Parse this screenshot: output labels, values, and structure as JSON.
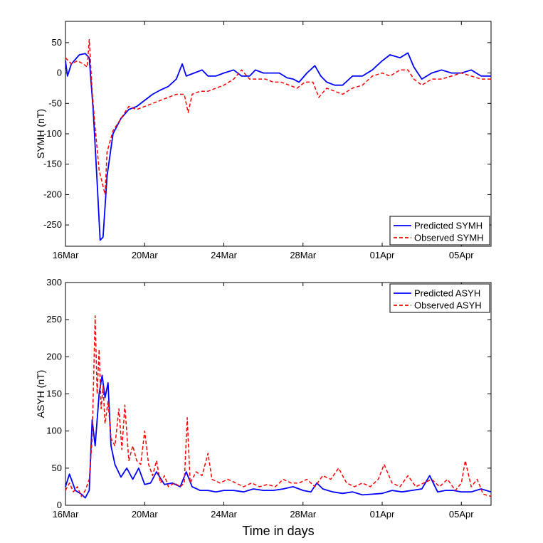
{
  "figure": {
    "xlabel": "Time in days"
  },
  "chart_data": [
    {
      "type": "line",
      "ylabel": "SYMH (nT)",
      "xlim": [
        0,
        21.5
      ],
      "ylim": [
        -285,
        85
      ],
      "yticks": [
        -250,
        -200,
        -150,
        -100,
        -50,
        0,
        50
      ],
      "xtick_positions": [
        0,
        4,
        8,
        12,
        16,
        20
      ],
      "xtick_labels": [
        "16Mar",
        "20Mar",
        "24Mar",
        "28Mar",
        "01Apr",
        "05Apr"
      ],
      "legend_position": "bottom-right",
      "series": [
        {
          "name": "Predicted SYMH",
          "color": "#0000ff",
          "style": "solid",
          "points": [
            [
              0,
              20
            ],
            [
              0.1,
              -5
            ],
            [
              0.3,
              15
            ],
            [
              0.7,
              30
            ],
            [
              1.0,
              32
            ],
            [
              1.2,
              25
            ],
            [
              1.4,
              -60
            ],
            [
              1.6,
              -180
            ],
            [
              1.75,
              -275
            ],
            [
              1.9,
              -270
            ],
            [
              2.1,
              -170
            ],
            [
              2.4,
              -100
            ],
            [
              2.8,
              -75
            ],
            [
              3.2,
              -60
            ],
            [
              3.6,
              -55
            ],
            [
              4.0,
              -45
            ],
            [
              4.4,
              -35
            ],
            [
              4.8,
              -28
            ],
            [
              5.2,
              -22
            ],
            [
              5.6,
              -10
            ],
            [
              5.9,
              15
            ],
            [
              6.1,
              -5
            ],
            [
              6.5,
              0
            ],
            [
              6.9,
              5
            ],
            [
              7.2,
              -5
            ],
            [
              7.6,
              -5
            ],
            [
              8.0,
              0
            ],
            [
              8.5,
              5
            ],
            [
              8.9,
              -5
            ],
            [
              9.3,
              -5
            ],
            [
              9.6,
              5
            ],
            [
              10.0,
              0
            ],
            [
              10.4,
              0
            ],
            [
              10.8,
              0
            ],
            [
              11.2,
              -8
            ],
            [
              11.5,
              -10
            ],
            [
              11.8,
              -15
            ],
            [
              12.2,
              0
            ],
            [
              12.6,
              12
            ],
            [
              12.9,
              -5
            ],
            [
              13.2,
              -15
            ],
            [
              13.6,
              -20
            ],
            [
              14.0,
              -20
            ],
            [
              14.5,
              -5
            ],
            [
              15.0,
              -5
            ],
            [
              15.5,
              5
            ],
            [
              16.0,
              20
            ],
            [
              16.4,
              30
            ],
            [
              16.9,
              25
            ],
            [
              17.3,
              33
            ],
            [
              17.6,
              10
            ],
            [
              18.0,
              -10
            ],
            [
              18.5,
              0
            ],
            [
              19.0,
              5
            ],
            [
              19.5,
              0
            ],
            [
              20.0,
              0
            ],
            [
              20.5,
              5
            ],
            [
              21.0,
              -5
            ],
            [
              21.5,
              -5
            ]
          ]
        },
        {
          "name": "Observed SYMH",
          "color": "#ff0000",
          "style": "dashed",
          "points": [
            [
              0,
              25
            ],
            [
              0.3,
              15
            ],
            [
              0.6,
              20
            ],
            [
              0.9,
              15
            ],
            [
              1.1,
              10
            ],
            [
              1.2,
              55
            ],
            [
              1.35,
              -30
            ],
            [
              1.5,
              -90
            ],
            [
              1.7,
              -160
            ],
            [
              1.85,
              -180
            ],
            [
              2.0,
              -200
            ],
            [
              2.1,
              -130
            ],
            [
              2.4,
              -95
            ],
            [
              2.8,
              -75
            ],
            [
              3.2,
              -55
            ],
            [
              3.6,
              -60
            ],
            [
              4.0,
              -55
            ],
            [
              4.4,
              -50
            ],
            [
              4.8,
              -45
            ],
            [
              5.2,
              -40
            ],
            [
              5.6,
              -35
            ],
            [
              6.0,
              -35
            ],
            [
              6.2,
              -65
            ],
            [
              6.4,
              -35
            ],
            [
              6.8,
              -30
            ],
            [
              7.2,
              -30
            ],
            [
              7.6,
              -25
            ],
            [
              8.0,
              -20
            ],
            [
              8.5,
              -10
            ],
            [
              8.9,
              5
            ],
            [
              9.3,
              -10
            ],
            [
              9.7,
              -10
            ],
            [
              10.1,
              -10
            ],
            [
              10.5,
              -15
            ],
            [
              10.9,
              -15
            ],
            [
              11.3,
              -20
            ],
            [
              11.7,
              -25
            ],
            [
              12.1,
              -15
            ],
            [
              12.5,
              -15
            ],
            [
              12.8,
              -40
            ],
            [
              13.2,
              -25
            ],
            [
              13.6,
              -30
            ],
            [
              14.0,
              -35
            ],
            [
              14.5,
              -25
            ],
            [
              15.0,
              -20
            ],
            [
              15.5,
              -5
            ],
            [
              16.0,
              0
            ],
            [
              16.4,
              -5
            ],
            [
              16.9,
              5
            ],
            [
              17.3,
              5
            ],
            [
              17.6,
              -10
            ],
            [
              18.0,
              -20
            ],
            [
              18.5,
              -10
            ],
            [
              19.0,
              -10
            ],
            [
              19.5,
              -5
            ],
            [
              20.0,
              0
            ],
            [
              20.5,
              -5
            ],
            [
              21.0,
              -10
            ],
            [
              21.5,
              -10
            ]
          ]
        }
      ]
    },
    {
      "type": "line",
      "ylabel": "ASYH (nT)",
      "xlim": [
        0,
        21.5
      ],
      "ylim": [
        0,
        300
      ],
      "yticks": [
        0,
        50,
        100,
        150,
        200,
        250,
        300
      ],
      "xtick_positions": [
        0,
        4,
        8,
        12,
        16,
        20
      ],
      "xtick_labels": [
        "16Mar",
        "20Mar",
        "24Mar",
        "28Mar",
        "01Apr",
        "05Apr"
      ],
      "legend_position": "top-right",
      "series": [
        {
          "name": "Predicted ASYH",
          "color": "#0000ff",
          "style": "solid",
          "points": [
            [
              0,
              25
            ],
            [
              0.2,
              42
            ],
            [
              0.5,
              20
            ],
            [
              0.8,
              15
            ],
            [
              1.0,
              10
            ],
            [
              1.2,
              20
            ],
            [
              1.35,
              115
            ],
            [
              1.5,
              80
            ],
            [
              1.7,
              150
            ],
            [
              1.85,
              175
            ],
            [
              2.0,
              145
            ],
            [
              2.15,
              165
            ],
            [
              2.3,
              80
            ],
            [
              2.5,
              55
            ],
            [
              2.8,
              38
            ],
            [
              3.1,
              50
            ],
            [
              3.4,
              35
            ],
            [
              3.7,
              50
            ],
            [
              4.0,
              28
            ],
            [
              4.3,
              30
            ],
            [
              4.6,
              45
            ],
            [
              5.0,
              28
            ],
            [
              5.4,
              30
            ],
            [
              5.8,
              25
            ],
            [
              6.1,
              45
            ],
            [
              6.4,
              25
            ],
            [
              6.8,
              20
            ],
            [
              7.2,
              20
            ],
            [
              7.6,
              18
            ],
            [
              8.0,
              20
            ],
            [
              8.5,
              20
            ],
            [
              9.0,
              18
            ],
            [
              9.5,
              22
            ],
            [
              10.0,
              20
            ],
            [
              10.5,
              20
            ],
            [
              11.0,
              22
            ],
            [
              11.5,
              25
            ],
            [
              12.0,
              20
            ],
            [
              12.4,
              18
            ],
            [
              12.7,
              30
            ],
            [
              13.0,
              22
            ],
            [
              13.5,
              18
            ],
            [
              14.0,
              16
            ],
            [
              14.5,
              18
            ],
            [
              15.0,
              14
            ],
            [
              15.5,
              15
            ],
            [
              16.0,
              16
            ],
            [
              16.5,
              20
            ],
            [
              17.0,
              18
            ],
            [
              17.5,
              20
            ],
            [
              18.0,
              22
            ],
            [
              18.4,
              40
            ],
            [
              18.8,
              18
            ],
            [
              19.2,
              20
            ],
            [
              19.6,
              20
            ],
            [
              20.0,
              18
            ],
            [
              20.5,
              18
            ],
            [
              21.0,
              22
            ],
            [
              21.5,
              18
            ]
          ]
        },
        {
          "name": "Observed ASYH",
          "color": "#ff0000",
          "style": "dashed",
          "points": [
            [
              0,
              20
            ],
            [
              0.2,
              30
            ],
            [
              0.4,
              18
            ],
            [
              0.6,
              25
            ],
            [
              0.8,
              12
            ],
            [
              1.0,
              20
            ],
            [
              1.2,
              35
            ],
            [
              1.35,
              90
            ],
            [
              1.5,
              255
            ],
            [
              1.6,
              150
            ],
            [
              1.7,
              210
            ],
            [
              1.8,
              130
            ],
            [
              1.9,
              160
            ],
            [
              2.0,
              110
            ],
            [
              2.15,
              140
            ],
            [
              2.3,
              90
            ],
            [
              2.5,
              80
            ],
            [
              2.7,
              130
            ],
            [
              2.85,
              75
            ],
            [
              3.0,
              135
            ],
            [
              3.2,
              60
            ],
            [
              3.4,
              80
            ],
            [
              3.6,
              60
            ],
            [
              3.8,
              55
            ],
            [
              4.0,
              100
            ],
            [
              4.2,
              55
            ],
            [
              4.4,
              40
            ],
            [
              4.6,
              60
            ],
            [
              4.8,
              30
            ],
            [
              5.0,
              40
            ],
            [
              5.2,
              25
            ],
            [
              5.5,
              30
            ],
            [
              5.8,
              25
            ],
            [
              6.0,
              30
            ],
            [
              6.15,
              118
            ],
            [
              6.3,
              30
            ],
            [
              6.6,
              45
            ],
            [
              6.9,
              40
            ],
            [
              7.2,
              70
            ],
            [
              7.4,
              35
            ],
            [
              7.8,
              30
            ],
            [
              8.2,
              35
            ],
            [
              8.6,
              30
            ],
            [
              9.0,
              25
            ],
            [
              9.4,
              30
            ],
            [
              9.8,
              25
            ],
            [
              10.2,
              28
            ],
            [
              10.6,
              25
            ],
            [
              11.0,
              35
            ],
            [
              11.4,
              30
            ],
            [
              11.8,
              30
            ],
            [
              12.2,
              35
            ],
            [
              12.6,
              25
            ],
            [
              13.0,
              40
            ],
            [
              13.4,
              35
            ],
            [
              13.8,
              50
            ],
            [
              14.2,
              30
            ],
            [
              14.6,
              25
            ],
            [
              15.0,
              30
            ],
            [
              15.4,
              25
            ],
            [
              15.8,
              35
            ],
            [
              16.1,
              55
            ],
            [
              16.5,
              30
            ],
            [
              16.9,
              25
            ],
            [
              17.3,
              40
            ],
            [
              17.7,
              25
            ],
            [
              18.1,
              30
            ],
            [
              18.5,
              35
            ],
            [
              18.9,
              25
            ],
            [
              19.3,
              35
            ],
            [
              19.7,
              20
            ],
            [
              20.0,
              30
            ],
            [
              20.2,
              60
            ],
            [
              20.5,
              25
            ],
            [
              20.8,
              35
            ],
            [
              21.1,
              15
            ],
            [
              21.5,
              12
            ]
          ]
        }
      ]
    }
  ]
}
